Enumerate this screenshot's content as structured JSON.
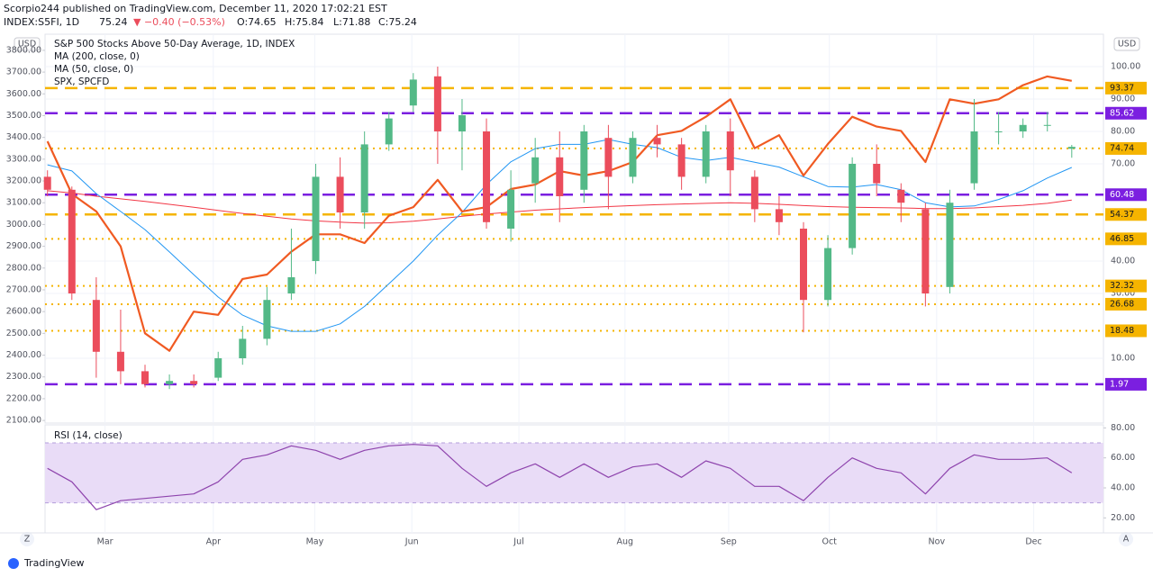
{
  "header": {
    "byline": "Scorpio244 published on TradingView.com, December 11, 2020 17:02:21 EST",
    "symbol": "INDEX:S5FI, 1D",
    "last": "75.24",
    "change": "▼ −0.40 (−0.53%)",
    "open": "O:74.65",
    "high": "H:75.84",
    "low": "L:71.88",
    "close": "C:75.24",
    "currency": "USD",
    "footer": "TradingView",
    "zoom_button": "Z",
    "auto_button": "A"
  },
  "chart_data": {
    "type": "candlestick",
    "title": "S&P 500 Stocks Above 50-Day Average, 1D, INDEX",
    "up_color": "#53b987",
    "down_color": "#eb4d5c",
    "open": [
      66,
      62,
      28,
      12,
      6,
      2,
      3,
      4,
      10,
      16,
      30,
      40,
      66,
      55,
      76,
      88,
      97,
      80,
      80,
      50,
      64,
      72,
      62,
      78,
      66,
      78,
      76,
      66,
      80,
      66,
      56,
      50,
      28,
      44,
      70,
      62,
      56,
      32,
      64,
      80,
      80,
      82,
      74.65
    ],
    "high": [
      68,
      63,
      35,
      25,
      8,
      5,
      5,
      12,
      20,
      32,
      50,
      70,
      72,
      80,
      86,
      98,
      100,
      90,
      84,
      68,
      78,
      80,
      82,
      82,
      80,
      82,
      78,
      82,
      84,
      68,
      60,
      52,
      48,
      72,
      76,
      64,
      58,
      62,
      90,
      86,
      84,
      86,
      75.84
    ],
    "low": [
      60,
      28,
      4,
      2,
      1,
      0.5,
      1,
      3,
      8,
      14,
      28,
      36,
      50,
      50,
      74,
      86,
      70,
      68,
      50,
      46,
      58,
      52,
      58,
      56,
      64,
      72,
      62,
      64,
      60,
      52,
      48,
      18,
      26,
      42,
      60,
      52,
      26,
      30,
      62,
      76,
      78,
      80,
      71.88
    ],
    "close": [
      62,
      30,
      12,
      6,
      2,
      3,
      2,
      10,
      16,
      28,
      35,
      66,
      55,
      76,
      84,
      96,
      80,
      85,
      52,
      62,
      72,
      60,
      80,
      66,
      78,
      76,
      66,
      80,
      68,
      56,
      52,
      28,
      44,
      70,
      64,
      58,
      30,
      58,
      80,
      80,
      82,
      82,
      75.24
    ],
    "series": [
      {
        "name": "MA (200, close, 0)",
        "color": "#f23645",
        "width": 1,
        "values": [
          61.7,
          61,
          60,
          59.2,
          58.4,
          57.5,
          56.6,
          55.6,
          54.7,
          53.8,
          53,
          52.4,
          52,
          51.7,
          51.8,
          52.3,
          53,
          53.8,
          54.5,
          55.1,
          55.7,
          56.1,
          56.5,
          56.8,
          57.1,
          57.4,
          57.6,
          57.8,
          58,
          57.8,
          57.5,
          57.1,
          56.8,
          56.6,
          56.5,
          56.4,
          56.2,
          56.2,
          56.4,
          56.8,
          57.2,
          57.8,
          58.8
        ]
      },
      {
        "name": "MA (50, close, 0)",
        "color": "#2196f3",
        "width": 1,
        "values": [
          69.7,
          67.8,
          60.8,
          55.3,
          49.7,
          42.8,
          35.8,
          28.9,
          23.3,
          20,
          18.3,
          18.3,
          20.6,
          26,
          33,
          40,
          48,
          55,
          63.6,
          70.6,
          74.7,
          76,
          76,
          77.5,
          76,
          75,
          72,
          71,
          72,
          70.5,
          69,
          66,
          63,
          62.8,
          63.6,
          62,
          58,
          56.7,
          57,
          59,
          61.7,
          65.6,
          68.9
        ]
      },
      {
        "name": "SPX, SPCFD",
        "color": "#f05a22",
        "width": 2.2,
        "axis": "y2",
        "values": [
          3382,
          3140,
          3060,
          2900,
          2500,
          2420,
          2600,
          2585,
          2750,
          2770,
          2875,
          2955,
          2955,
          2915,
          3040,
          3080,
          3205,
          3060,
          3080,
          3163,
          3183,
          3245,
          3225,
          3245,
          3287,
          3410,
          3430,
          3495,
          3575,
          3350,
          3410,
          3225,
          3370,
          3495,
          3450,
          3430,
          3287,
          3575,
          3555,
          3575,
          3640,
          3680,
          3660
        ]
      }
    ],
    "levels": [
      {
        "value": 93.37,
        "color": "#f5b400",
        "style": "dashed"
      },
      {
        "value": 85.62,
        "color": "#7b1fe0",
        "style": "dashed"
      },
      {
        "value": 74.74,
        "color": "#f5b400",
        "style": "dotted"
      },
      {
        "value": 60.48,
        "color": "#7b1fe0",
        "style": "dashed"
      },
      {
        "value": 54.37,
        "color": "#f5b400",
        "style": "dashed"
      },
      {
        "value": 46.85,
        "color": "#f5b400",
        "style": "dotted"
      },
      {
        "value": 32.32,
        "color": "#f5b400",
        "style": "dotted"
      },
      {
        "value": 26.68,
        "color": "#f5b400",
        "style": "dotted"
      },
      {
        "value": 18.48,
        "color": "#f5b400",
        "style": "dotted"
      },
      {
        "value": 1.97,
        "color": "#7b1fe0",
        "style": "dashed"
      }
    ],
    "xlim": [
      -0.1,
      43.3
    ],
    "xticks": [
      {
        "value": 2.36,
        "label": "Mar"
      },
      {
        "value": 6.8,
        "label": "Apr"
      },
      {
        "value": 10.96,
        "label": "May"
      },
      {
        "value": 14.94,
        "label": "Jun"
      },
      {
        "value": 19.33,
        "label": "Jul"
      },
      {
        "value": 23.68,
        "label": "Aug"
      },
      {
        "value": 27.93,
        "label": "Sep"
      },
      {
        "value": 32.06,
        "label": "Oct"
      },
      {
        "value": 36.46,
        "label": "Nov"
      },
      {
        "value": 40.44,
        "label": "Dec"
      }
    ],
    "ylim": [
      -10,
      110
    ],
    "yticks": [
      {
        "value": 10,
        "label": "10.00"
      },
      {
        "value": 30,
        "label": "30.00"
      },
      {
        "value": 40,
        "label": "40.00"
      },
      {
        "value": 70,
        "label": "70.00"
      },
      {
        "value": 80,
        "label": "80.00"
      },
      {
        "value": 90,
        "label": "90.00"
      },
      {
        "value": 100,
        "label": "100.00"
      }
    ],
    "y2lim": [
      2088,
      3874
    ],
    "y2ticks": [
      {
        "value": 2100,
        "label": "2100.00"
      },
      {
        "value": 2200,
        "label": "2200.00"
      },
      {
        "value": 2300,
        "label": "2300.00"
      },
      {
        "value": 2400,
        "label": "2400.00"
      },
      {
        "value": 2500,
        "label": "2500.00"
      },
      {
        "value": 2600,
        "label": "2600.00"
      },
      {
        "value": 2700,
        "label": "2700.00"
      },
      {
        "value": 2800,
        "label": "2800.00"
      },
      {
        "value": 2900,
        "label": "2900.00"
      },
      {
        "value": 3000,
        "label": "3000.00"
      },
      {
        "value": 3100,
        "label": "3100.00"
      },
      {
        "value": 3200,
        "label": "3200.00"
      },
      {
        "value": 3300,
        "label": "3300.00"
      },
      {
        "value": 3400,
        "label": "3400.00"
      },
      {
        "value": 3500,
        "label": "3500.00"
      },
      {
        "value": 3600,
        "label": "3600.00"
      },
      {
        "value": 3700,
        "label": "3700.00"
      },
      {
        "value": 3800,
        "label": "3800.00"
      }
    ],
    "grid": true,
    "rsi": {
      "name": "RSI (14, close)",
      "color": "#8e44ad",
      "band": [
        30,
        70
      ],
      "band_color": "#e9dcf7",
      "values": [
        53,
        44,
        25.5,
        31.5,
        33,
        34.5,
        36,
        44,
        59,
        62,
        68,
        65,
        59,
        65,
        68,
        69,
        68,
        53,
        41,
        50,
        56,
        47,
        56,
        47,
        54,
        56,
        47,
        58,
        53,
        41,
        41,
        31.5,
        47,
        60,
        53,
        50,
        36,
        53,
        62,
        59,
        59,
        60,
        50
      ],
      "ylim": [
        10,
        82
      ],
      "yticks": [
        {
          "value": 20,
          "label": "20.00"
        },
        {
          "value": 40,
          "label": "40.00"
        },
        {
          "value": 60,
          "label": "60.00"
        },
        {
          "value": 80,
          "label": "80.00"
        }
      ]
    }
  }
}
